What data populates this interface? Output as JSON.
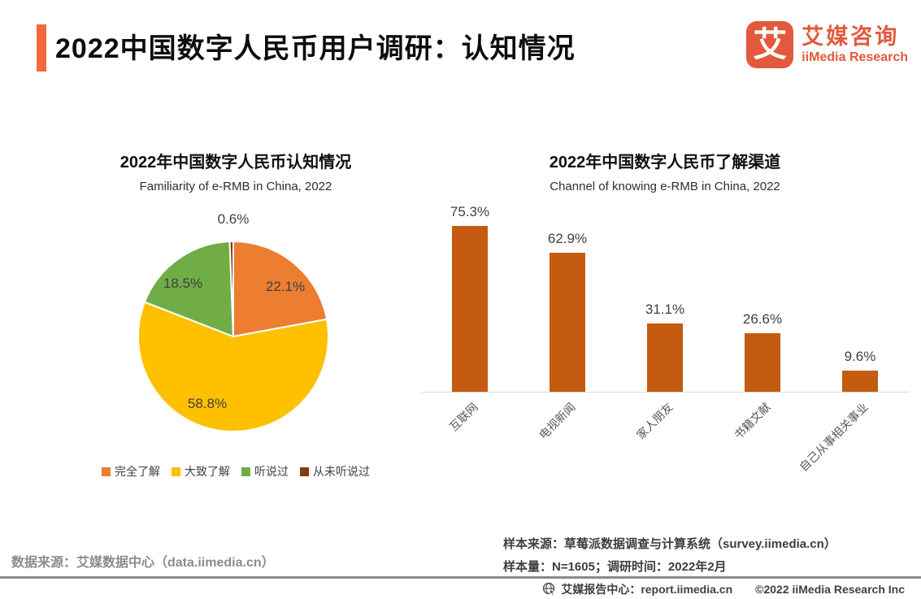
{
  "header": {
    "title": "2022中国数字人民币用户调研：认知情况",
    "accent_color": "#F2693C",
    "logo": {
      "glyph": "艾",
      "name_cn": "艾媒咨询",
      "name_en": "iiMedia Research",
      "brand_color": "#E2593B"
    }
  },
  "chart_data": [
    {
      "type": "pie",
      "title": "2022年中国数字人民币认知情况",
      "subtitle": "Familiarity of e-RMB in China, 2022",
      "labels": [
        "完全了解",
        "大致了解",
        "听说过",
        "从未听说过"
      ],
      "values": [
        22.1,
        58.8,
        18.5,
        0.6
      ],
      "display_labels": [
        "22.1%",
        "58.8%",
        "18.5%",
        "0.6%"
      ],
      "colors": [
        "#ED7D31",
        "#FFC000",
        "#70AD47",
        "#843C0C"
      ],
      "start_angle": "12-oclock",
      "direction": "clockwise",
      "legend_position": "bottom"
    },
    {
      "type": "bar",
      "title": "2022年中国数字人民币了解渠道",
      "subtitle": "Channel of knowing e-RMB in China, 2022",
      "categories": [
        "互联网",
        "电视新闻",
        "家人朋友",
        "书籍文献",
        "自己从事相关事业"
      ],
      "values": [
        75.3,
        62.9,
        31.1,
        26.6,
        9.6
      ],
      "display_labels": [
        "75.3%",
        "62.9%",
        "31.1%",
        "26.6%",
        "9.6%"
      ],
      "bar_color": "#C55A11",
      "ylim": [
        0,
        80
      ],
      "grid": false,
      "xlabel": "",
      "ylabel": ""
    }
  ],
  "sources": {
    "data_source": "数据来源：艾媒数据中心（data.iimedia.cn）",
    "sample_source": "样本来源：草莓派数据调查与计算系统（survey.iimedia.cn）",
    "sample_info": "样本量：N=1605；调研时间：2022年2月"
  },
  "footer": {
    "report_center": "艾媒报告中心：report.iimedia.cn",
    "copyright": "©2022 iiMedia Research Inc"
  }
}
